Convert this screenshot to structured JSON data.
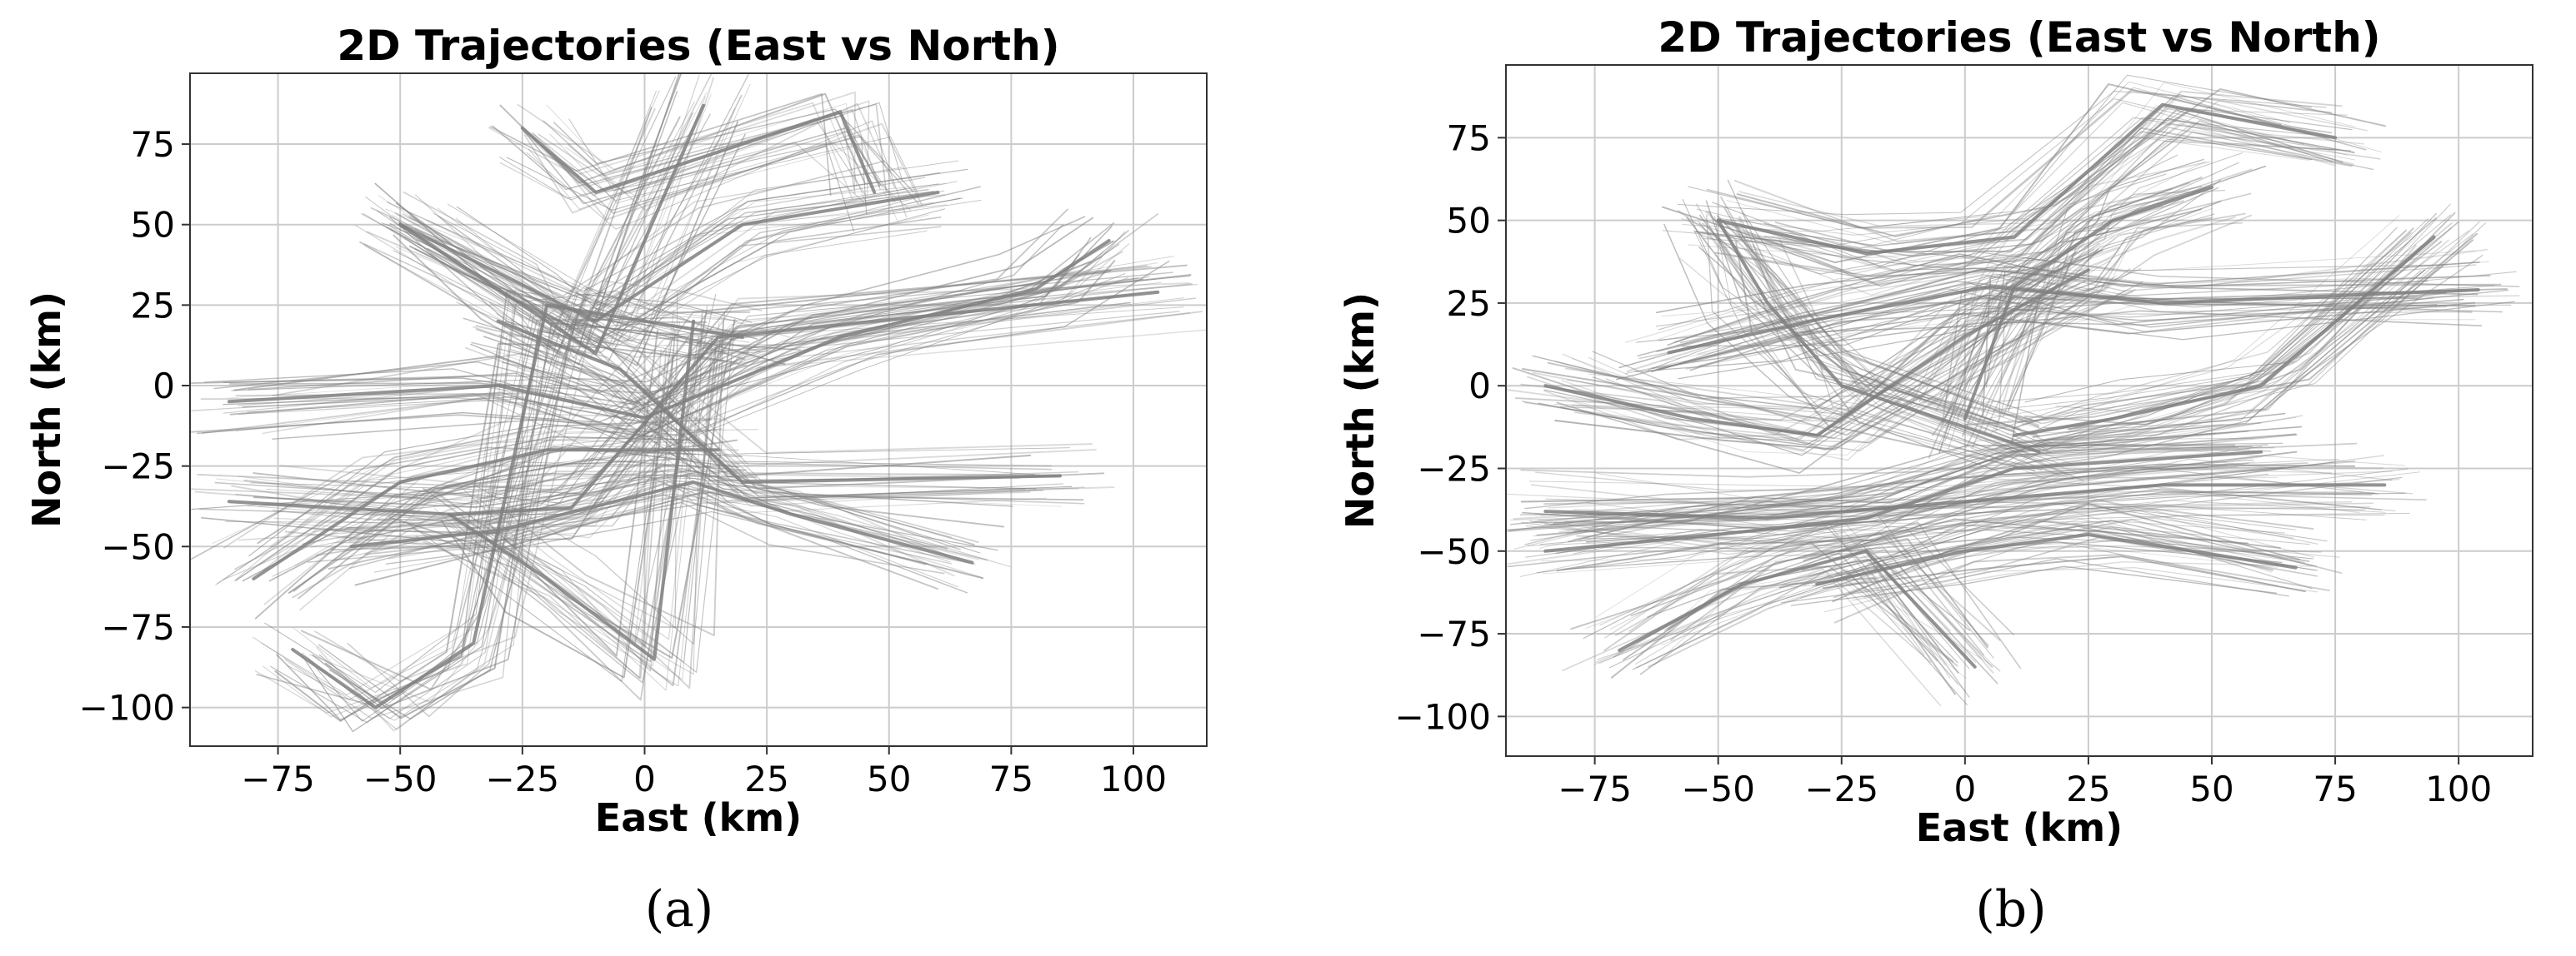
{
  "chart_data": [
    {
      "panel_label": "(a)",
      "type": "line",
      "title": "2D Trajectories (East vs North)",
      "xlabel": "East (km)",
      "ylabel": "North (km)",
      "xlim": [
        -93,
        115
      ],
      "ylim": [
        -112,
        97
      ],
      "xticks": [
        -75,
        -50,
        -25,
        0,
        25,
        50,
        75,
        100
      ],
      "xtick_labels": [
        "−75",
        "−50",
        "−25",
        "0",
        "25",
        "50",
        "75",
        "100"
      ],
      "yticks": [
        -100,
        -75,
        -50,
        -25,
        0,
        25,
        50,
        75
      ],
      "ytick_labels": [
        "−100",
        "−75",
        "−50",
        "−25",
        "0",
        "25",
        "50",
        "75"
      ],
      "grid": true,
      "color": "#808080",
      "series": [
        {
          "x": [
            -85,
            -40,
            -15,
            15,
            105
          ],
          "y": [
            -36,
            -40,
            -38,
            15,
            29
          ]
        },
        {
          "x": [
            -50,
            -25,
            -10,
            12
          ],
          "y": [
            50,
            25,
            10,
            87
          ]
        },
        {
          "x": [
            -72,
            -55,
            -35,
            -20,
            0,
            20
          ],
          "y": [
            -82,
            -100,
            -80,
            25,
            20,
            15
          ]
        },
        {
          "x": [
            -50,
            -10,
            20,
            60
          ],
          "y": [
            50,
            20,
            50,
            60
          ]
        },
        {
          "x": [
            -85,
            -30,
            0,
            40,
            80,
            95
          ],
          "y": [
            -5,
            0,
            -10,
            15,
            30,
            45
          ]
        },
        {
          "x": [
            -25,
            -10,
            40,
            47
          ],
          "y": [
            80,
            60,
            85,
            60
          ]
        },
        {
          "x": [
            -40,
            -20,
            2,
            10
          ],
          "y": [
            -40,
            -60,
            -85,
            20
          ]
        },
        {
          "x": [
            -60,
            -30,
            10,
            30,
            67
          ],
          "y": [
            -50,
            -45,
            -30,
            -40,
            -55
          ]
        },
        {
          "x": [
            -30,
            -5,
            20,
            85
          ],
          "y": [
            20,
            5,
            -30,
            -28
          ]
        },
        {
          "x": [
            -80,
            -50,
            -20,
            15
          ],
          "y": [
            -60,
            -30,
            -20,
            -20
          ]
        }
      ]
    },
    {
      "panel_label": "(b)",
      "type": "line",
      "title": "2D Trajectories (East vs North)",
      "xlabel": "East (km)",
      "ylabel": "North (km)",
      "xlim": [
        -93,
        115
      ],
      "ylim": [
        -112,
        97
      ],
      "xticks": [
        -75,
        -50,
        -25,
        0,
        25,
        50,
        75,
        100
      ],
      "xtick_labels": [
        "−75",
        "−50",
        "−25",
        "0",
        "25",
        "50",
        "75",
        "100"
      ],
      "yticks": [
        -100,
        -75,
        -50,
        -25,
        0,
        25,
        50,
        75
      ],
      "ytick_labels": [
        "−100",
        "−75",
        "−50",
        "−25",
        "0",
        "25",
        "50",
        "75"
      ],
      "grid": true,
      "color": "#808080",
      "series": [
        {
          "x": [
            -85,
            -40,
            0,
            40,
            85
          ],
          "y": [
            -38,
            -40,
            -35,
            -30,
            -30
          ]
        },
        {
          "x": [
            -85,
            -50,
            -20,
            10,
            60
          ],
          "y": [
            -50,
            -45,
            -40,
            -25,
            -20
          ]
        },
        {
          "x": [
            -60,
            -30,
            5,
            40,
            104
          ],
          "y": [
            10,
            20,
            30,
            25,
            29
          ]
        },
        {
          "x": [
            -50,
            -20,
            10,
            40,
            75
          ],
          "y": [
            50,
            40,
            45,
            85,
            75
          ]
        },
        {
          "x": [
            -70,
            -45,
            -20,
            2
          ],
          "y": [
            -80,
            -60,
            -50,
            -85
          ]
        },
        {
          "x": [
            -30,
            0,
            25,
            67
          ],
          "y": [
            -60,
            -50,
            -45,
            -55
          ]
        },
        {
          "x": [
            0,
            10,
            20,
            30,
            50
          ],
          "y": [
            -10,
            30,
            40,
            50,
            60
          ]
        },
        {
          "x": [
            -85,
            -55,
            -30,
            0,
            25
          ],
          "y": [
            0,
            -10,
            -15,
            15,
            35
          ]
        },
        {
          "x": [
            -50,
            -40,
            -25,
            15
          ],
          "y": [
            50,
            25,
            0,
            -20
          ]
        },
        {
          "x": [
            10,
            30,
            60,
            95
          ],
          "y": [
            -15,
            -10,
            0,
            45
          ]
        }
      ]
    }
  ]
}
